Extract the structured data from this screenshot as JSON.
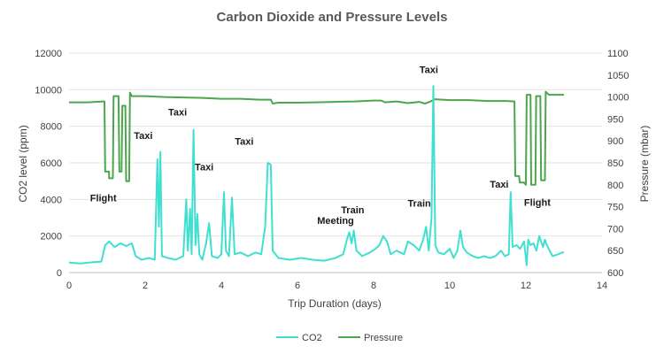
{
  "chart_data": {
    "type": "line",
    "title": "Carbon Dioxide and Pressure Levels",
    "xlabel": "Trip Duration (days)",
    "ylabel_left": "CO2 level (ppm)",
    "ylabel_right": "Pressure (mbar)",
    "xlim": [
      0,
      14
    ],
    "ylim_left": [
      0,
      12000
    ],
    "ylim_right": [
      600,
      1100
    ],
    "x_ticks": [
      "0",
      "2",
      "4",
      "6",
      "8",
      "10",
      "12",
      "14"
    ],
    "y_left_ticks": [
      "0",
      "2000",
      "4000",
      "6000",
      "8000",
      "10000",
      "12000"
    ],
    "y_right_ticks": [
      "600",
      "650",
      "700",
      "750",
      "800",
      "850",
      "900",
      "950",
      "1000",
      "1050",
      "1100"
    ],
    "grid": true,
    "legend_position": "bottom",
    "series": [
      {
        "name": "CO2",
        "axis": "left",
        "color": "#40E0D0",
        "points": [
          [
            0,
            550
          ],
          [
            0.3,
            500
          ],
          [
            0.6,
            560
          ],
          [
            0.85,
            600
          ],
          [
            0.95,
            1500
          ],
          [
            1.05,
            1700
          ],
          [
            1.2,
            1400
          ],
          [
            1.35,
            1600
          ],
          [
            1.5,
            1450
          ],
          [
            1.65,
            1600
          ],
          [
            1.75,
            900
          ],
          [
            1.9,
            700
          ],
          [
            2.1,
            800
          ],
          [
            2.25,
            700
          ],
          [
            2.32,
            6200
          ],
          [
            2.36,
            2500
          ],
          [
            2.4,
            6600
          ],
          [
            2.44,
            900
          ],
          [
            2.6,
            800
          ],
          [
            2.8,
            700
          ],
          [
            3.0,
            900
          ],
          [
            3.08,
            4000
          ],
          [
            3.12,
            1200
          ],
          [
            3.18,
            3500
          ],
          [
            3.22,
            1000
          ],
          [
            3.27,
            7800
          ],
          [
            3.32,
            1500
          ],
          [
            3.37,
            3200
          ],
          [
            3.42,
            1000
          ],
          [
            3.5,
            700
          ],
          [
            3.6,
            1600
          ],
          [
            3.68,
            2700
          ],
          [
            3.75,
            900
          ],
          [
            3.9,
            800
          ],
          [
            4.0,
            1000
          ],
          [
            4.07,
            4400
          ],
          [
            4.12,
            1200
          ],
          [
            4.2,
            900
          ],
          [
            4.28,
            4100
          ],
          [
            4.35,
            1000
          ],
          [
            4.5,
            1100
          ],
          [
            4.7,
            900
          ],
          [
            4.9,
            1100
          ],
          [
            5.05,
            1000
          ],
          [
            5.15,
            2500
          ],
          [
            5.22,
            6000
          ],
          [
            5.3,
            5900
          ],
          [
            5.35,
            1200
          ],
          [
            5.5,
            800
          ],
          [
            5.8,
            700
          ],
          [
            6.1,
            800
          ],
          [
            6.4,
            700
          ],
          [
            6.7,
            650
          ],
          [
            7.0,
            800
          ],
          [
            7.2,
            1000
          ],
          [
            7.3,
            1800
          ],
          [
            7.36,
            2200
          ],
          [
            7.42,
            1600
          ],
          [
            7.48,
            2300
          ],
          [
            7.55,
            1200
          ],
          [
            7.7,
            900
          ],
          [
            7.9,
            1100
          ],
          [
            8.05,
            1300
          ],
          [
            8.15,
            1500
          ],
          [
            8.25,
            2000
          ],
          [
            8.35,
            1700
          ],
          [
            8.45,
            1000
          ],
          [
            8.6,
            1200
          ],
          [
            8.8,
            1000
          ],
          [
            8.9,
            1700
          ],
          [
            9.05,
            1500
          ],
          [
            9.2,
            1200
          ],
          [
            9.3,
            1800
          ],
          [
            9.38,
            2500
          ],
          [
            9.45,
            1200
          ],
          [
            9.52,
            3000
          ],
          [
            9.57,
            10200
          ],
          [
            9.62,
            1500
          ],
          [
            9.7,
            1100
          ],
          [
            9.85,
            1000
          ],
          [
            10.0,
            1300
          ],
          [
            10.1,
            800
          ],
          [
            10.2,
            1200
          ],
          [
            10.28,
            2300
          ],
          [
            10.35,
            1400
          ],
          [
            10.45,
            1100
          ],
          [
            10.6,
            900
          ],
          [
            10.75,
            800
          ],
          [
            10.9,
            900
          ],
          [
            11.05,
            800
          ],
          [
            11.2,
            900
          ],
          [
            11.35,
            1200
          ],
          [
            11.45,
            900
          ],
          [
            11.55,
            1000
          ],
          [
            11.6,
            4400
          ],
          [
            11.65,
            1400
          ],
          [
            11.75,
            1500
          ],
          [
            11.85,
            1300
          ],
          [
            11.95,
            1700
          ],
          [
            12.02,
            400
          ],
          [
            12.06,
            1800
          ],
          [
            12.12,
            1500
          ],
          [
            12.2,
            1600
          ],
          [
            12.28,
            1200
          ],
          [
            12.35,
            2000
          ],
          [
            12.45,
            1400
          ],
          [
            12.5,
            1800
          ],
          [
            12.55,
            1500
          ],
          [
            12.7,
            900
          ],
          [
            12.85,
            1000
          ],
          [
            12.95,
            1100
          ],
          [
            13.0,
            1100
          ]
        ]
      },
      {
        "name": "Pressure",
        "axis": "right",
        "color": "#4CA64C",
        "points": [
          [
            0,
            988
          ],
          [
            0.5,
            988
          ],
          [
            0.9,
            990
          ],
          [
            0.93,
            990
          ],
          [
            0.95,
            830
          ],
          [
            1.05,
            830
          ],
          [
            1.05,
            815
          ],
          [
            1.15,
            815
          ],
          [
            1.17,
            1002
          ],
          [
            1.3,
            1002
          ],
          [
            1.32,
            830
          ],
          [
            1.38,
            830
          ],
          [
            1.4,
            980
          ],
          [
            1.48,
            980
          ],
          [
            1.5,
            808
          ],
          [
            1.58,
            808
          ],
          [
            1.6,
            1010
          ],
          [
            1.65,
            1002
          ],
          [
            2.0,
            1002
          ],
          [
            2.5,
            1000
          ],
          [
            3.0,
            999
          ],
          [
            3.5,
            998
          ],
          [
            4.0,
            996
          ],
          [
            4.5,
            996
          ],
          [
            5.0,
            994
          ],
          [
            5.3,
            994
          ],
          [
            5.35,
            985
          ],
          [
            5.5,
            987
          ],
          [
            6.0,
            987
          ],
          [
            6.5,
            988
          ],
          [
            7.0,
            989
          ],
          [
            7.5,
            990
          ],
          [
            8.0,
            992
          ],
          [
            8.2,
            992
          ],
          [
            8.3,
            988
          ],
          [
            8.6,
            990
          ],
          [
            8.9,
            986
          ],
          [
            9.2,
            989
          ],
          [
            9.35,
            985
          ],
          [
            9.5,
            990
          ],
          [
            9.6,
            995
          ],
          [
            10.0,
            993
          ],
          [
            10.5,
            993
          ],
          [
            11.0,
            991
          ],
          [
            11.5,
            991
          ],
          [
            11.7,
            990
          ],
          [
            11.72,
            820
          ],
          [
            11.82,
            820
          ],
          [
            11.84,
            805
          ],
          [
            11.95,
            805
          ],
          [
            12.0,
            800
          ],
          [
            12.02,
            1005
          ],
          [
            12.12,
            1005
          ],
          [
            12.14,
            800
          ],
          [
            12.25,
            800
          ],
          [
            12.27,
            1002
          ],
          [
            12.38,
            1002
          ],
          [
            12.4,
            810
          ],
          [
            12.5,
            810
          ],
          [
            12.52,
            1012
          ],
          [
            12.6,
            1005
          ],
          [
            13.0,
            1005
          ]
        ]
      }
    ],
    "annotations": [
      {
        "text": "Flight",
        "x": 0.9,
        "y": 3900
      },
      {
        "text": "Taxi",
        "x": 1.95,
        "y": 7300
      },
      {
        "text": "Taxi",
        "x": 2.85,
        "y": 8600
      },
      {
        "text": "Taxi",
        "x": 3.55,
        "y": 5600
      },
      {
        "text": "Taxi",
        "x": 4.6,
        "y": 7000
      },
      {
        "text": "Meeting",
        "x": 7.0,
        "y": 2650
      },
      {
        "text": "Train",
        "x": 7.45,
        "y": 3250
      },
      {
        "text": "Train",
        "x": 9.2,
        "y": 3600
      },
      {
        "text": "Taxi",
        "x": 9.45,
        "y": 10900
      },
      {
        "text": "Taxi",
        "x": 11.3,
        "y": 4650
      },
      {
        "text": "Flight",
        "x": 12.3,
        "y": 3650
      }
    ]
  }
}
